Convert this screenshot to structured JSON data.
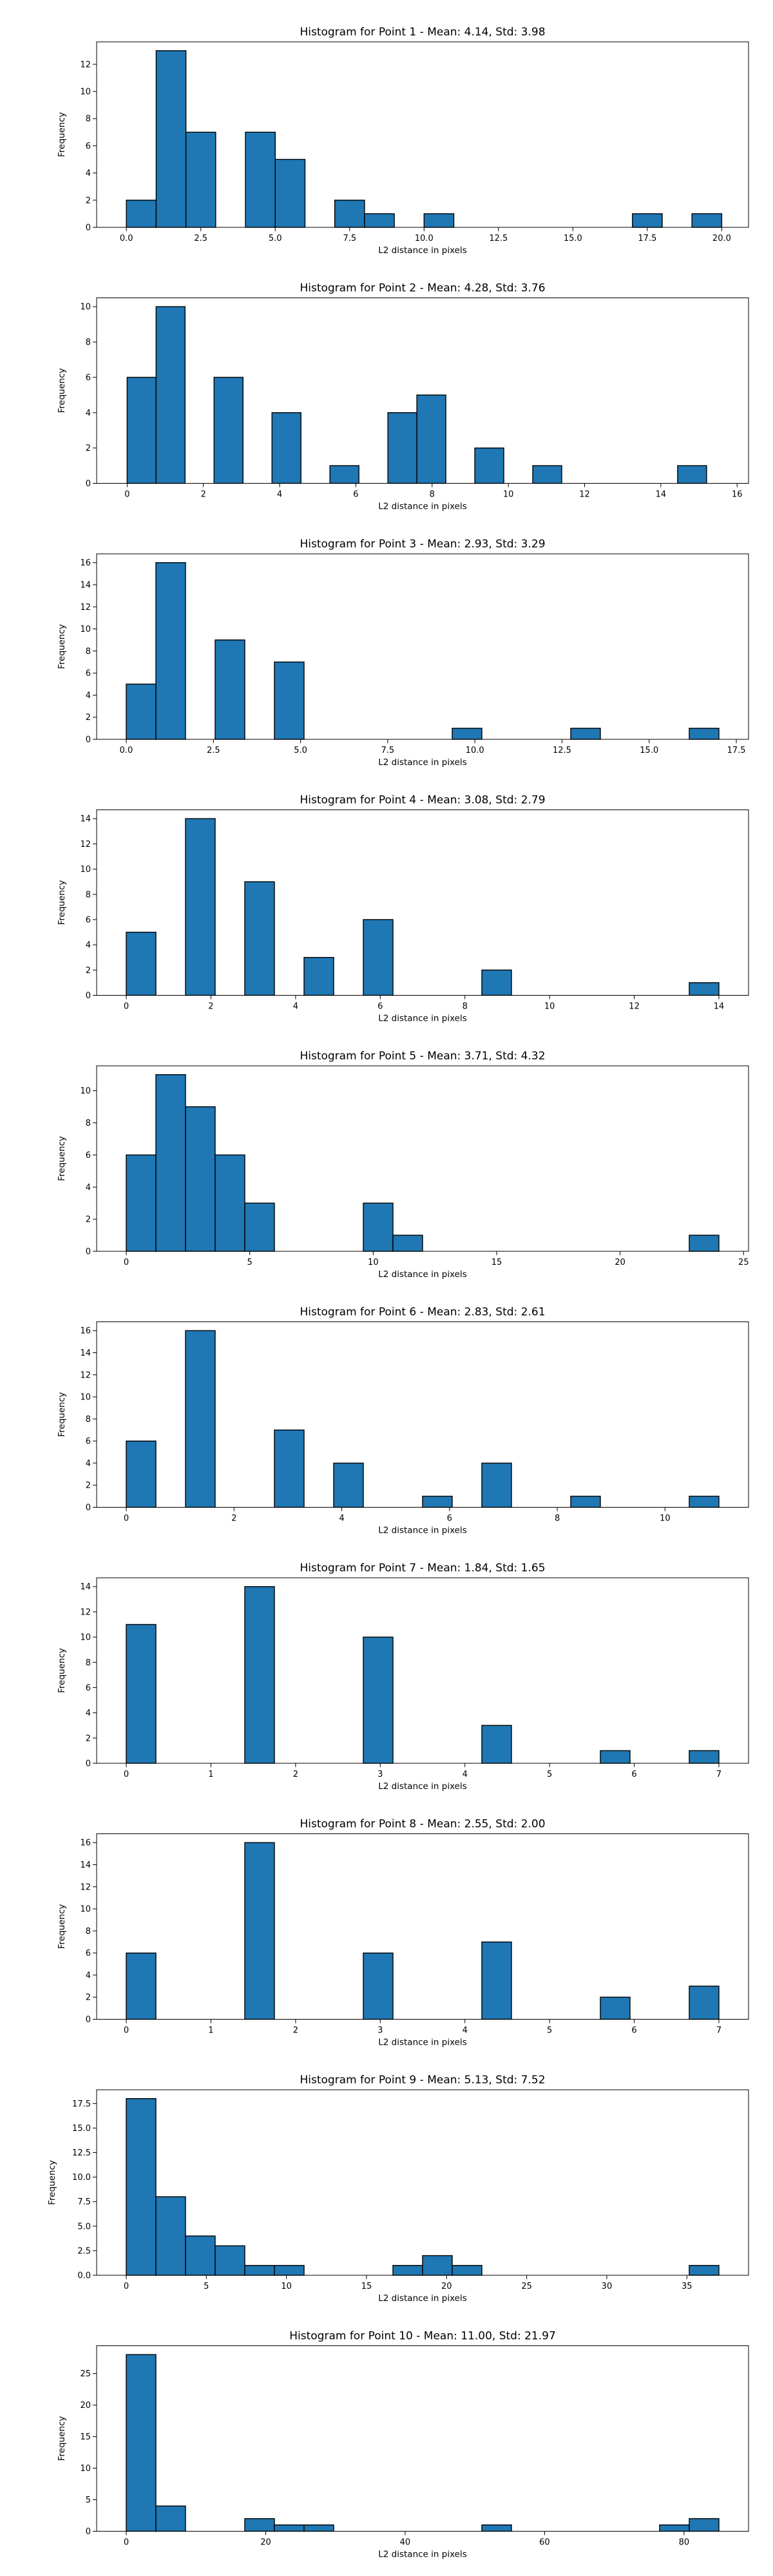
{
  "chart_data": [
    {
      "type": "bar",
      "title": "Histogram for Point 1 - Mean: 4.14, Std: 3.98",
      "xlabel": "L2 distance in pixels",
      "ylabel": "Frequency",
      "xlim": [
        -1.0,
        20.9
      ],
      "ylim": [
        0,
        13.65
      ],
      "xticks": [
        0.0,
        2.5,
        5.0,
        7.5,
        10.0,
        12.5,
        15.0,
        17.5,
        20.0
      ],
      "xtick_labels": [
        "0.0",
        "2.5",
        "5.0",
        "7.5",
        "10.0",
        "12.5",
        "15.0",
        "17.5",
        "20.0"
      ],
      "yticks": [
        0,
        2,
        4,
        6,
        8,
        10,
        12
      ],
      "ytick_labels": [
        "0",
        "2",
        "4",
        "6",
        "8",
        "10",
        "12"
      ],
      "bins": [
        0.0,
        1.0,
        2.0,
        3.0,
        4.0,
        5.0,
        6.0,
        7.0,
        8.0,
        9.0,
        10.0,
        11.0,
        12.0,
        13.0,
        14.0,
        15.0,
        16.0,
        17.0,
        18.0,
        19.0,
        20.0
      ],
      "counts": [
        2,
        13,
        7,
        0,
        7,
        5,
        0,
        2,
        1,
        0,
        1,
        0,
        0,
        0,
        0,
        0,
        0,
        1,
        0,
        1
      ]
    },
    {
      "type": "bar",
      "title": "Histogram for Point 2 - Mean: 4.28, Std: 3.76",
      "xlabel": "L2 distance in pixels",
      "ylabel": "Frequency",
      "xlim": [
        -0.8,
        16.3
      ],
      "ylim": [
        0,
        10.5
      ],
      "xticks": [
        0,
        2,
        4,
        6,
        8,
        10,
        12,
        14,
        16
      ],
      "xtick_labels": [
        "0",
        "2",
        "4",
        "6",
        "8",
        "10",
        "12",
        "14",
        "16"
      ],
      "yticks": [
        0,
        2,
        4,
        6,
        8,
        10
      ],
      "ytick_labels": [
        "0",
        "2",
        "4",
        "6",
        "8",
        "10"
      ],
      "bins": [
        0.0,
        0.76,
        1.52,
        2.28,
        3.04,
        3.8,
        4.56,
        5.32,
        6.08,
        6.84,
        7.6,
        8.36,
        9.12,
        9.88,
        10.64,
        11.4,
        12.16,
        12.92,
        13.68,
        14.44,
        15.2
      ],
      "counts": [
        6,
        10,
        0,
        6,
        0,
        4,
        0,
        1,
        0,
        4,
        5,
        0,
        2,
        0,
        1,
        0,
        0,
        0,
        0,
        1
      ]
    },
    {
      "type": "bar",
      "title": "Histogram for Point 3 - Mean: 2.93, Std: 3.29",
      "xlabel": "L2 distance in pixels",
      "ylabel": "Frequency",
      "xlim": [
        -0.85,
        17.85
      ],
      "ylim": [
        0,
        16.8
      ],
      "xticks": [
        0.0,
        2.5,
        5.0,
        7.5,
        10.0,
        12.5,
        15.0,
        17.5
      ],
      "xtick_labels": [
        "0.0",
        "2.5",
        "5.0",
        "7.5",
        "10.0",
        "12.5",
        "15.0",
        "17.5"
      ],
      "yticks": [
        0,
        2,
        4,
        6,
        8,
        10,
        12,
        14,
        16
      ],
      "ytick_labels": [
        "0",
        "2",
        "4",
        "6",
        "8",
        "10",
        "12",
        "14",
        "16"
      ],
      "bins": [
        0.0,
        0.85,
        1.7,
        2.55,
        3.4,
        4.25,
        5.1,
        5.95,
        6.8,
        7.65,
        8.5,
        9.35,
        10.2,
        11.05,
        11.9,
        12.75,
        13.6,
        14.45,
        15.3,
        16.15,
        17.0
      ],
      "counts": [
        5,
        16,
        0,
        9,
        0,
        7,
        0,
        0,
        0,
        0,
        0,
        1,
        0,
        0,
        0,
        1,
        0,
        0,
        0,
        1
      ]
    },
    {
      "type": "bar",
      "title": "Histogram for Point 4 - Mean: 3.08, Std: 2.79",
      "xlabel": "L2 distance in pixels",
      "ylabel": "Frequency",
      "xlim": [
        -0.7,
        14.7
      ],
      "ylim": [
        0,
        14.7
      ],
      "xticks": [
        0,
        2,
        4,
        6,
        8,
        10,
        12,
        14
      ],
      "xtick_labels": [
        "0",
        "2",
        "4",
        "6",
        "8",
        "10",
        "12",
        "14"
      ],
      "yticks": [
        0,
        2,
        4,
        6,
        8,
        10,
        12,
        14
      ],
      "ytick_labels": [
        "0",
        "2",
        "4",
        "6",
        "8",
        "10",
        "12",
        "14"
      ],
      "bins": [
        0.0,
        0.7,
        1.4,
        2.1,
        2.8,
        3.5,
        4.2,
        4.9,
        5.6,
        6.3,
        7.0,
        7.7,
        8.4,
        9.1,
        9.8,
        10.5,
        11.2,
        11.9,
        12.6,
        13.3,
        14.0
      ],
      "counts": [
        5,
        0,
        14,
        0,
        9,
        0,
        3,
        0,
        6,
        0,
        0,
        0,
        2,
        0,
        0,
        0,
        0,
        0,
        0,
        1
      ]
    },
    {
      "type": "bar",
      "title": "Histogram for Point 5 - Mean: 3.71, Std: 4.32",
      "xlabel": "L2 distance in pixels",
      "ylabel": "Frequency",
      "xlim": [
        -1.2,
        25.2
      ],
      "ylim": [
        0,
        11.55
      ],
      "xticks": [
        0,
        5,
        10,
        15,
        20,
        25
      ],
      "xtick_labels": [
        "0",
        "5",
        "10",
        "15",
        "20",
        "25"
      ],
      "yticks": [
        0,
        2,
        4,
        6,
        8,
        10
      ],
      "ytick_labels": [
        "0",
        "2",
        "4",
        "6",
        "8",
        "10"
      ],
      "bins": [
        0.0,
        1.2,
        2.4,
        3.6,
        4.8,
        6.0,
        7.2,
        8.4,
        9.6,
        10.8,
        12.0,
        13.2,
        14.4,
        15.6,
        16.8,
        18.0,
        19.2,
        20.4,
        21.6,
        22.8,
        24.0
      ],
      "counts": [
        6,
        11,
        9,
        6,
        3,
        0,
        0,
        0,
        3,
        1,
        0,
        0,
        0,
        0,
        0,
        0,
        0,
        0,
        0,
        1
      ]
    },
    {
      "type": "bar",
      "title": "Histogram for Point 6 - Mean: 2.83, Std: 2.61",
      "xlabel": "L2 distance in pixels",
      "ylabel": "Frequency",
      "xlim": [
        -0.55,
        11.55
      ],
      "ylim": [
        0,
        16.8
      ],
      "xticks": [
        0,
        2,
        4,
        6,
        8,
        10
      ],
      "xtick_labels": [
        "0",
        "2",
        "4",
        "6",
        "8",
        "10"
      ],
      "yticks": [
        0,
        2,
        4,
        6,
        8,
        10,
        12,
        14,
        16
      ],
      "ytick_labels": [
        "0",
        "2",
        "4",
        "6",
        "8",
        "10",
        "12",
        "14",
        "16"
      ],
      "bins": [
        0.0,
        0.55,
        1.1,
        1.65,
        2.2,
        2.75,
        3.3,
        3.85,
        4.4,
        4.95,
        5.5,
        6.05,
        6.6,
        7.15,
        7.7,
        8.25,
        8.8,
        9.35,
        9.9,
        10.45,
        11.0
      ],
      "counts": [
        6,
        0,
        16,
        0,
        0,
        7,
        0,
        4,
        0,
        0,
        1,
        0,
        4,
        0,
        0,
        1,
        0,
        0,
        0,
        1
      ]
    },
    {
      "type": "bar",
      "title": "Histogram for Point 7 - Mean: 1.84, Std: 1.65",
      "xlabel": "L2 distance in pixels",
      "ylabel": "Frequency",
      "xlim": [
        -0.35,
        7.35
      ],
      "ylim": [
        0,
        14.7
      ],
      "xticks": [
        0,
        1,
        2,
        3,
        4,
        5,
        6,
        7
      ],
      "xtick_labels": [
        "0",
        "1",
        "2",
        "3",
        "4",
        "5",
        "6",
        "7"
      ],
      "yticks": [
        0,
        2,
        4,
        6,
        8,
        10,
        12,
        14
      ],
      "ytick_labels": [
        "0",
        "2",
        "4",
        "6",
        "8",
        "10",
        "12",
        "14"
      ],
      "bins": [
        0.0,
        0.35,
        0.7,
        1.05,
        1.4,
        1.75,
        2.1,
        2.45,
        2.8,
        3.15,
        3.5,
        3.85,
        4.2,
        4.55,
        4.9,
        5.25,
        5.6,
        5.95,
        6.3,
        6.65,
        7.0
      ],
      "counts": [
        11,
        0,
        0,
        0,
        14,
        0,
        0,
        0,
        10,
        0,
        0,
        0,
        3,
        0,
        0,
        0,
        1,
        0,
        0,
        1
      ]
    },
    {
      "type": "bar",
      "title": "Histogram for Point 8 - Mean: 2.55, Std: 2.00",
      "xlabel": "L2 distance in pixels",
      "ylabel": "Frequency",
      "xlim": [
        -0.35,
        7.35
      ],
      "ylim": [
        0,
        16.8
      ],
      "xticks": [
        0,
        1,
        2,
        3,
        4,
        5,
        6,
        7
      ],
      "xtick_labels": [
        "0",
        "1",
        "2",
        "3",
        "4",
        "5",
        "6",
        "7"
      ],
      "yticks": [
        0,
        2,
        4,
        6,
        8,
        10,
        12,
        14,
        16
      ],
      "ytick_labels": [
        "0",
        "2",
        "4",
        "6",
        "8",
        "10",
        "12",
        "14",
        "16"
      ],
      "bins": [
        0.0,
        0.35,
        0.7,
        1.05,
        1.4,
        1.75,
        2.1,
        2.45,
        2.8,
        3.15,
        3.5,
        3.85,
        4.2,
        4.55,
        4.9,
        5.25,
        5.6,
        5.95,
        6.3,
        6.65,
        7.0
      ],
      "counts": [
        6,
        0,
        0,
        0,
        16,
        0,
        0,
        0,
        6,
        0,
        0,
        0,
        7,
        0,
        0,
        0,
        2,
        0,
        0,
        3
      ]
    },
    {
      "type": "bar",
      "title": "Histogram for Point 9 - Mean: 5.13, Std: 7.52",
      "xlabel": "L2 distance in pixels",
      "ylabel": "Frequency",
      "xlim": [
        -1.85,
        38.85
      ],
      "ylim": [
        0,
        18.9
      ],
      "xticks": [
        0,
        5,
        10,
        15,
        20,
        25,
        30,
        35
      ],
      "xtick_labels": [
        "0",
        "5",
        "10",
        "15",
        "20",
        "25",
        "30",
        "35"
      ],
      "yticks": [
        0.0,
        2.5,
        5.0,
        7.5,
        10.0,
        12.5,
        15.0,
        17.5
      ],
      "ytick_labels": [
        "0.0",
        "2.5",
        "5.0",
        "7.5",
        "10.0",
        "12.5",
        "15.0",
        "17.5"
      ],
      "bins": [
        0.0,
        1.85,
        3.7,
        5.55,
        7.4,
        9.25,
        11.1,
        12.95,
        14.8,
        16.65,
        18.5,
        20.35,
        22.2,
        24.05,
        25.9,
        27.75,
        29.6,
        31.45,
        33.3,
        35.15,
        37.0
      ],
      "counts": [
        18,
        8,
        4,
        3,
        1,
        1,
        0,
        0,
        0,
        1,
        2,
        1,
        0,
        0,
        0,
        0,
        0,
        0,
        0,
        1
      ]
    },
    {
      "type": "bar",
      "title": "Histogram for Point 10 - Mean: 11.00, Std: 21.97",
      "xlabel": "L2 distance in pixels",
      "ylabel": "Frequency",
      "xlim": [
        -4.25,
        89.25
      ],
      "ylim": [
        0,
        29.4
      ],
      "xticks": [
        0,
        20,
        40,
        60,
        80
      ],
      "xtick_labels": [
        "0",
        "20",
        "40",
        "60",
        "80"
      ],
      "yticks": [
        0,
        5,
        10,
        15,
        20,
        25
      ],
      "ytick_labels": [
        "0",
        "5",
        "10",
        "15",
        "20",
        "25"
      ],
      "bins": [
        0.0,
        4.25,
        8.5,
        12.75,
        17.0,
        21.25,
        25.5,
        29.75,
        34.0,
        38.25,
        42.5,
        46.75,
        51.0,
        55.25,
        59.5,
        63.75,
        68.0,
        72.25,
        76.5,
        80.75,
        85.0
      ],
      "counts": [
        28,
        4,
        0,
        0,
        2,
        1,
        1,
        0,
        0,
        0,
        0,
        0,
        1,
        0,
        0,
        0,
        0,
        0,
        1,
        2
      ]
    }
  ]
}
